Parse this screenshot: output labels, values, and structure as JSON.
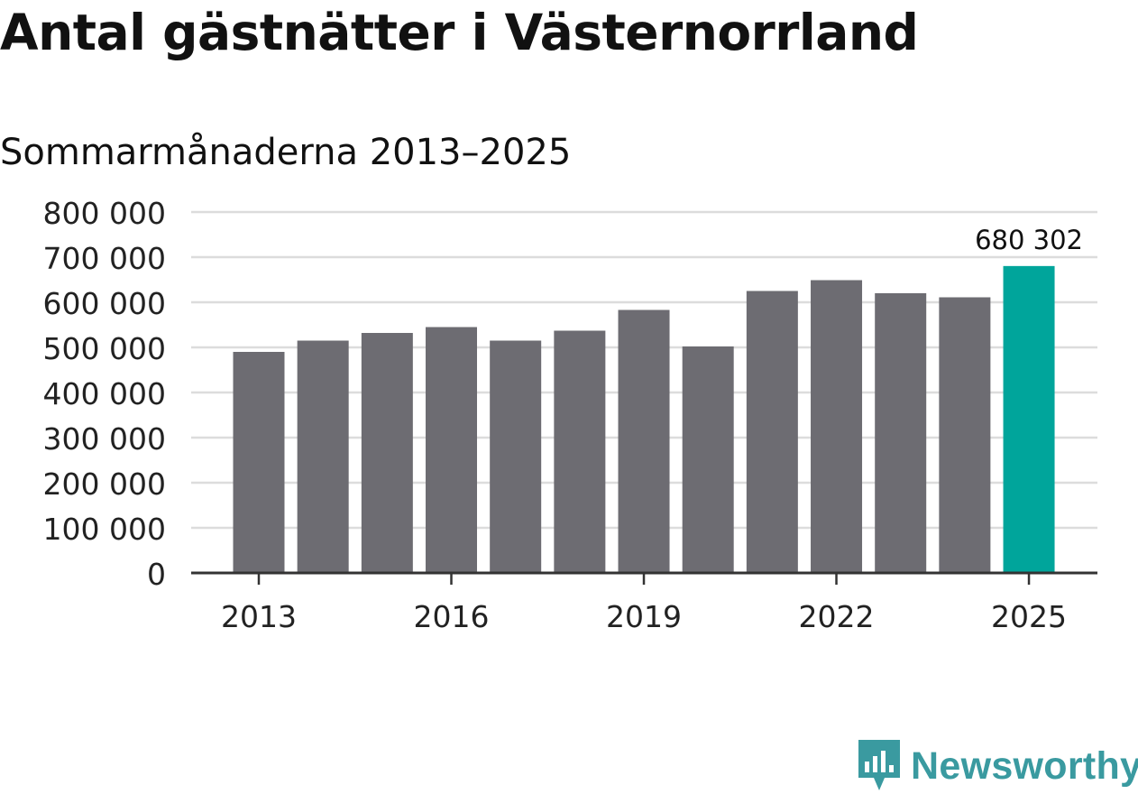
{
  "title": "Antal gästnätter i Västernorrland",
  "subtitle": "Sommarmånaderna 2013–2025",
  "logo": {
    "text": "Newsworthy",
    "icon": "newsworthy-logo-icon",
    "color": "#3a9aa0"
  },
  "colors": {
    "bar": "#6d6c72",
    "highlight": "#00a59b",
    "grid": "#dcdcdc",
    "axis": "#333333"
  },
  "chart_data": {
    "type": "bar",
    "categories": [
      "2013",
      "2014",
      "2015",
      "2016",
      "2017",
      "2018",
      "2019",
      "2020",
      "2021",
      "2022",
      "2023",
      "2024",
      "2025"
    ],
    "values": [
      490000,
      515000,
      532000,
      545000,
      515000,
      537000,
      583000,
      502000,
      625000,
      649000,
      620000,
      611000,
      680302
    ],
    "highlight_index": 12,
    "data_labels": [
      {
        "index": 12,
        "text": "680 302"
      }
    ],
    "x_tick_labels": [
      {
        "index": 0,
        "text": "2013"
      },
      {
        "index": 3,
        "text": "2016"
      },
      {
        "index": 6,
        "text": "2019"
      },
      {
        "index": 9,
        "text": "2022"
      },
      {
        "index": 12,
        "text": "2025"
      }
    ],
    "y_ticks": [
      0,
      100000,
      200000,
      300000,
      400000,
      500000,
      600000,
      700000,
      800000
    ],
    "y_tick_labels": [
      "0",
      "100 000",
      "200 000",
      "300 000",
      "400 000",
      "500 000",
      "600 000",
      "700 000",
      "800 000"
    ],
    "ylim": [
      0,
      800000
    ],
    "xlabel": "",
    "ylabel": "",
    "grid": true,
    "legend": "none"
  }
}
